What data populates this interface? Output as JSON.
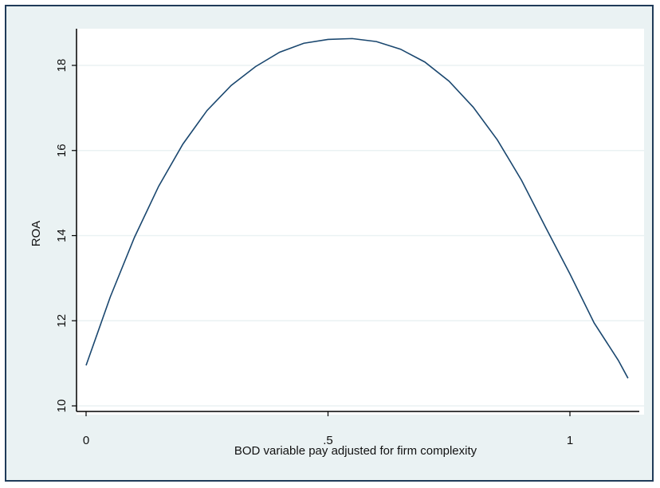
{
  "chart_data": {
    "type": "line",
    "title": "",
    "xlabel": "BOD variable pay adjusted for firm complexity",
    "ylabel": "ROA",
    "xlim": [
      0,
      1.12
    ],
    "ylim": [
      10,
      18.8
    ],
    "x_ticks": [
      0,
      0.5,
      1
    ],
    "x_tick_labels": [
      "0",
      ".5",
      "1"
    ],
    "y_ticks": [
      10,
      12,
      14,
      16,
      18
    ],
    "y_tick_labels": [
      "10",
      "12",
      "14",
      "16",
      "18"
    ],
    "grid": true,
    "legend": "none",
    "series": [
      {
        "x": [
          0,
          0.05,
          0.1,
          0.15,
          0.2,
          0.25,
          0.3,
          0.35,
          0.4,
          0.45,
          0.5,
          0.55,
          0.6,
          0.65,
          0.7,
          0.75,
          0.8,
          0.85,
          0.9,
          0.95,
          1.0,
          1.05,
          1.1,
          1.12
        ],
        "y": [
          10.95,
          12.56,
          13.96,
          15.16,
          16.15,
          16.94,
          17.53,
          17.97,
          18.31,
          18.52,
          18.61,
          18.63,
          18.56,
          18.38,
          18.08,
          17.63,
          17.02,
          16.25,
          15.3,
          14.19,
          13.1,
          11.95,
          11.07,
          10.65
        ]
      }
    ],
    "colors": {
      "background": "#eaf2f3",
      "plot_background": "#ffffff",
      "line": "#1a476f",
      "grid": "#eaf2f3",
      "frame": "#1f3b59"
    }
  }
}
